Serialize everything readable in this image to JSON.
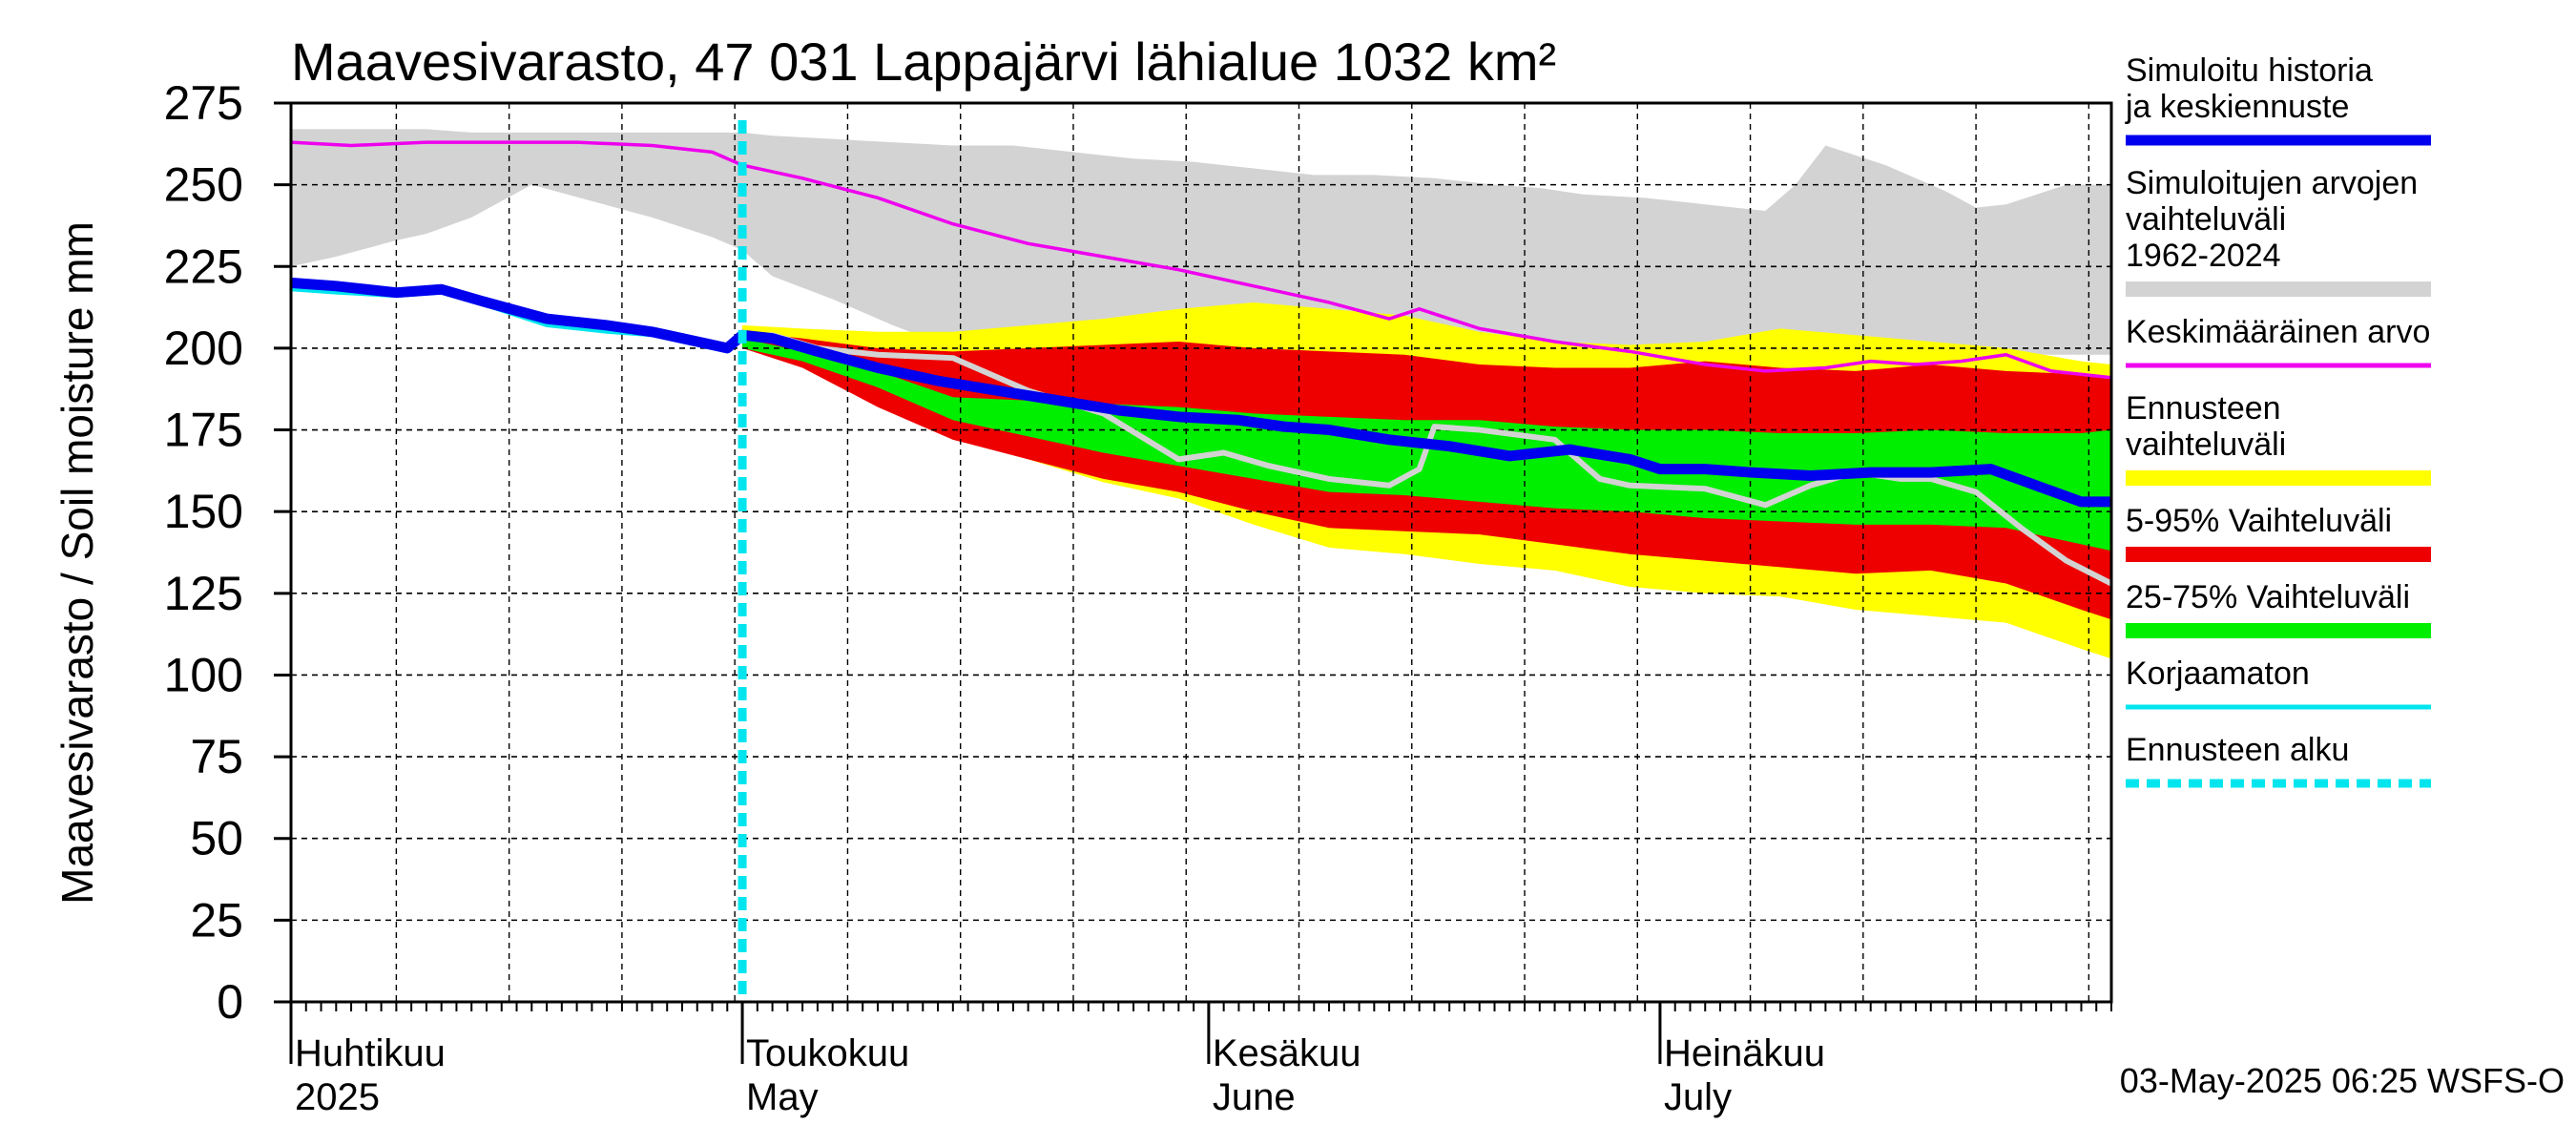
{
  "chart_data": {
    "type": "area",
    "title": "Maavesivarasto, 47 031 Lappajärvi lähialue 1032 km²",
    "ylabel": "Maavesivarasto / Soil moisture   mm",
    "ylim": [
      0,
      275
    ],
    "yticks": [
      0,
      25,
      50,
      75,
      100,
      125,
      150,
      175,
      200,
      225,
      250,
      275
    ],
    "x_unit": "day of year 2025",
    "xlim": [
      91,
      212
    ],
    "months": [
      {
        "fi": "Huhtikuu",
        "en": "2025",
        "day": 91
      },
      {
        "fi": "Toukokuu",
        "en": "May",
        "day": 121
      },
      {
        "fi": "Kesäkuu",
        "en": "June",
        "day": 152
      },
      {
        "fi": "Heinäkuu",
        "en": "July",
        "day": 182
      }
    ],
    "forecast_start_day": 121,
    "footer": "03-May-2025 06:25 WSFS-O",
    "legend": [
      {
        "label": "Simuloitu historia ja keskiennuste",
        "color": "#0000ee",
        "style": "thick"
      },
      {
        "label": "Simuloitujen arvojen vaihteluväli 1962-2024",
        "color": "#d3d3d3",
        "style": "band"
      },
      {
        "label": "Keskimääräinen arvo",
        "color": "#ee00ee",
        "style": "line"
      },
      {
        "label": "Ennusteen vaihteluväli",
        "color": "#ffff00",
        "style": "band"
      },
      {
        "label": "5-95% Vaihteluväli",
        "color": "#ee0000",
        "style": "band"
      },
      {
        "label": "25-75% Vaihteluväli",
        "color": "#00ee00",
        "style": "band"
      },
      {
        "label": "Korjaamaton",
        "color": "#00e5ee",
        "style": "line"
      },
      {
        "label": "Ennusteen alku",
        "color": "#00e5ee",
        "style": "dashed"
      }
    ],
    "series": {
      "hist_range": {
        "days": [
          91,
          94,
          98,
          100,
          103,
          107,
          111,
          115,
          119,
          121,
          123,
          127,
          131,
          135,
          139,
          143,
          147,
          151,
          155,
          159,
          163,
          167,
          171,
          174,
          177,
          181,
          185,
          189,
          191,
          193,
          197,
          201,
          203,
          205,
          209,
          212
        ],
        "upper": [
          267,
          267,
          267,
          267,
          266,
          266,
          266,
          266,
          266,
          266,
          265,
          264,
          263,
          262,
          262,
          260,
          258,
          257,
          255,
          253,
          253,
          252,
          250,
          249,
          247,
          246,
          244,
          242,
          250,
          262,
          256,
          248,
          243,
          244,
          250,
          250
        ],
        "lower": [
          225,
          228,
          233,
          235,
          240,
          250,
          245,
          240,
          234,
          230,
          222,
          215,
          207,
          200,
          196,
          193,
          193,
          192,
          192,
          194,
          196,
          196,
          196,
          196,
          196,
          196,
          196,
          196,
          196,
          197,
          197,
          197,
          198,
          198,
          198,
          198
        ]
      },
      "mean": {
        "days": [
          91,
          95,
          100,
          105,
          110,
          115,
          119,
          121,
          125,
          130,
          135,
          140,
          145,
          150,
          155,
          160,
          164,
          166,
          170,
          175,
          180,
          185,
          189,
          193,
          196,
          199,
          202,
          205,
          208,
          212
        ],
        "values": [
          263,
          262,
          263,
          263,
          263,
          262,
          260,
          256,
          252,
          246,
          238,
          232,
          228,
          224,
          219,
          214,
          209,
          212,
          206,
          202,
          199,
          195,
          193,
          194,
          196,
          195,
          196,
          198,
          193,
          191
        ]
      },
      "sim": {
        "days": [
          91,
          94,
          98,
          101,
          104,
          108,
          112,
          115,
          118,
          120,
          121,
          123,
          126,
          130,
          134,
          138,
          142,
          146,
          150,
          154,
          157,
          160,
          164,
          168,
          172,
          176,
          180,
          182,
          185,
          188,
          192,
          196,
          200,
          204,
          207,
          210,
          212
        ],
        "values": [
          220,
          219,
          217,
          218,
          214,
          209,
          207,
          205,
          202,
          200,
          204,
          203,
          199,
          194,
          190,
          187,
          184,
          181,
          179,
          178,
          176,
          175,
          172,
          170,
          167,
          169,
          166,
          163,
          163,
          162,
          161,
          162,
          162,
          163,
          158,
          153,
          153
        ]
      },
      "uncorrected": {
        "days": [
          91,
          94,
          98,
          101,
          104,
          108,
          112,
          115,
          118,
          120,
          121,
          123,
          126,
          130
        ],
        "values": [
          218,
          217,
          216,
          217,
          213,
          207,
          205,
          204,
          201,
          199,
          203,
          202,
          198,
          193
        ]
      },
      "forecast_range": {
        "days": [
          121,
          125,
          130,
          135,
          140,
          145,
          150,
          155,
          160,
          165,
          170,
          175,
          180,
          185,
          190,
          195,
          200,
          205,
          210,
          212
        ],
        "upper": [
          207,
          206,
          205,
          205,
          207,
          209,
          212,
          214,
          212,
          210,
          205,
          202,
          201,
          202,
          206,
          204,
          202,
          200,
          196,
          195
        ],
        "lower": [
          201,
          196,
          185,
          174,
          166,
          159,
          154,
          146,
          139,
          137,
          134,
          132,
          127,
          125,
          124,
          120,
          118,
          116,
          108,
          105
        ]
      },
      "p5_95": {
        "days": [
          121,
          125,
          130,
          135,
          140,
          145,
          150,
          155,
          160,
          165,
          170,
          175,
          180,
          185,
          190,
          195,
          200,
          205,
          210,
          212
        ],
        "upper": [
          205,
          203,
          200,
          199,
          200,
          201,
          202,
          200,
          199,
          198,
          195,
          194,
          194,
          196,
          194,
          193,
          195,
          193,
          192,
          191
        ],
        "lower": [
          200,
          194,
          182,
          172,
          166,
          160,
          156,
          150,
          145,
          144,
          143,
          140,
          137,
          135,
          133,
          131,
          132,
          128,
          120,
          117
        ]
      },
      "p25_75": {
        "days": [
          121,
          125,
          130,
          135,
          140,
          145,
          150,
          155,
          160,
          165,
          170,
          175,
          180,
          185,
          190,
          195,
          200,
          205,
          210,
          212
        ],
        "upper": [
          203,
          199,
          193,
          185,
          184,
          183,
          182,
          180,
          179,
          178,
          178,
          176,
          175,
          175,
          174,
          174,
          175,
          174,
          174,
          175
        ],
        "lower": [
          200,
          196,
          188,
          178,
          173,
          168,
          164,
          160,
          156,
          155,
          153,
          151,
          150,
          148,
          147,
          146,
          146,
          145,
          140,
          138
        ]
      },
      "grey_scenario": {
        "days": [
          121,
          123,
          126,
          130,
          135,
          140,
          145,
          150,
          153,
          156,
          160,
          164,
          166,
          167,
          170,
          175,
          178,
          180,
          185,
          189,
          192,
          195,
          198,
          200,
          203,
          206,
          209,
          212
        ],
        "values": [
          203,
          204,
          200,
          198,
          197,
          187,
          180,
          166,
          168,
          164,
          160,
          158,
          163,
          176,
          175,
          172,
          160,
          158,
          157,
          152,
          158,
          162,
          160,
          160,
          156,
          145,
          135,
          128
        ]
      }
    }
  }
}
